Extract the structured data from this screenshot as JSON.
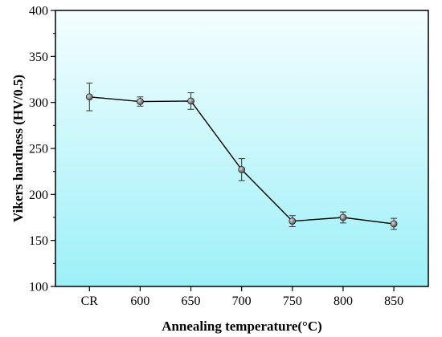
{
  "chart_data": {
    "type": "line",
    "xlabel": "Annealing temperature(°C)",
    "ylabel": "Vikers hardness (HV/0.5)",
    "categories": [
      "CR",
      "600",
      "650",
      "700",
      "750",
      "800",
      "850"
    ],
    "series": [
      {
        "values": [
          306,
          301,
          301.5,
          227,
          171,
          175,
          168
        ],
        "errors": [
          15,
          5,
          9,
          12,
          6,
          6,
          6
        ]
      }
    ],
    "ylim": [
      100,
      400
    ],
    "yticks": [
      100,
      150,
      200,
      250,
      300,
      350,
      400
    ],
    "grid": false,
    "legend": "none",
    "colors": {
      "background_top": "#f4feff",
      "background_bottom": "#9cf0f8",
      "line": "#000000",
      "marker": "#4d4d4d"
    }
  }
}
